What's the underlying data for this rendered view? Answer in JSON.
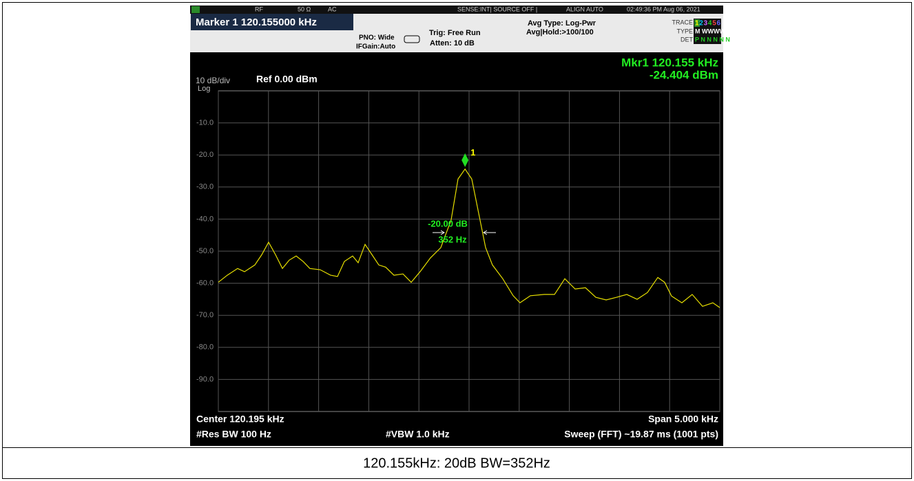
{
  "status_bar": {
    "rf": "RF",
    "impedance": "50 Ω",
    "coupling": "AC",
    "sense": "SENSE:INT| SOURCE OFF |",
    "align": "ALIGN AUTO",
    "timestamp": "02:49:36 PM Aug 06, 2021"
  },
  "header": {
    "marker": "Marker 1 120.155000 kHz",
    "pno": "PNO: Wide",
    "ifgain": "IFGain:Auto",
    "trig": "Trig: Free Run",
    "atten": "Atten: 10 dB",
    "avg_type": "Avg Type: Log-Pwr",
    "avg_hold": "Avg|Hold:>100/100",
    "trace_label": "TRACE",
    "trace_digits": [
      "1",
      "2",
      "3",
      "4",
      "5",
      "6"
    ],
    "type_label": "TYPE",
    "type_value": "M WWWWW",
    "det_label": "DET",
    "det_value": "P N N N N N"
  },
  "screen": {
    "marker_readout_freq": "Mkr1 120.155 kHz",
    "marker_readout_level": "-24.404 dBm",
    "scale": "10 dB/div",
    "scale_type": "Log",
    "ref_level": "Ref 0.00 dBm",
    "center": "Center 120.195 kHz",
    "span": "Span 5.000 kHz",
    "rbw": "#Res BW 100 Hz",
    "vbw": "#VBW 1.0 kHz",
    "sweep": "Sweep (FFT)  ~19.87 ms (1001 pts)",
    "annotation_db": "-20.00 dB",
    "annotation_bw": "352 Hz",
    "chart_data": {
      "type": "line",
      "xlim": [
        117.695,
        122.695
      ],
      "ylim": [
        -100,
        0
      ],
      "xticks": [
        117.695,
        118.195,
        118.695,
        119.195,
        119.695,
        120.195,
        120.695,
        121.195,
        121.695,
        122.195,
        122.695
      ],
      "yticks": [
        {
          "value": -10,
          "label": "-10.0"
        },
        {
          "value": -20,
          "label": "-20.0"
        },
        {
          "value": -30,
          "label": "-30.0"
        },
        {
          "value": -40,
          "label": "-40.0"
        },
        {
          "value": -50,
          "label": "-50.0"
        },
        {
          "value": -60,
          "label": "-60.0"
        },
        {
          "value": -70,
          "label": "-70.0"
        },
        {
          "value": -80,
          "label": "-80.0"
        },
        {
          "value": -90,
          "label": "-90.0"
        }
      ],
      "grid": true,
      "x": [
        117.695,
        117.784,
        117.887,
        117.956,
        118.059,
        118.128,
        118.196,
        118.265,
        118.334,
        118.402,
        118.471,
        118.54,
        118.608,
        118.711,
        118.814,
        118.883,
        118.952,
        119.034,
        119.089,
        119.158,
        119.227,
        119.295,
        119.364,
        119.446,
        119.536,
        119.618,
        119.707,
        119.81,
        119.913,
        120.016,
        120.085,
        120.155,
        120.222,
        120.291,
        120.36,
        120.428,
        120.531,
        120.635,
        120.703,
        120.806,
        120.944,
        121.047,
        121.15,
        121.253,
        121.356,
        121.459,
        121.562,
        121.665,
        121.768,
        121.871,
        121.974,
        122.077,
        122.145,
        122.214,
        122.317,
        122.42,
        122.523,
        122.626,
        122.695
      ],
      "series": [
        {
          "color": "#e8e000",
          "values": [
            -59.7,
            -57.5,
            -55.4,
            -56.4,
            -54.3,
            -51.1,
            -47.2,
            -51.1,
            -55.4,
            -52.8,
            -51.5,
            -53.2,
            -55.4,
            -55.8,
            -57.5,
            -57.9,
            -53.2,
            -51.5,
            -53.6,
            -47.9,
            -51.1,
            -54.3,
            -55.0,
            -57.5,
            -57.1,
            -59.7,
            -56.4,
            -52.1,
            -48.9,
            -40.3,
            -27.5,
            -24.4,
            -27.5,
            -38.2,
            -48.9,
            -54.3,
            -58.6,
            -63.9,
            -66.1,
            -63.9,
            -63.5,
            -63.5,
            -58.6,
            -61.8,
            -61.4,
            -64.4,
            -65.2,
            -64.4,
            -63.5,
            -65.0,
            -62.9,
            -58.2,
            -59.7,
            -64.0,
            -66.1,
            -63.5,
            -67.2,
            -66.1,
            -67.6
          ]
        }
      ],
      "marker": {
        "x": 120.155,
        "y": -24.404,
        "label": "1",
        "color": "#22dd22"
      }
    }
  },
  "caption": "120.155kHz: 20dB BW=352Hz"
}
